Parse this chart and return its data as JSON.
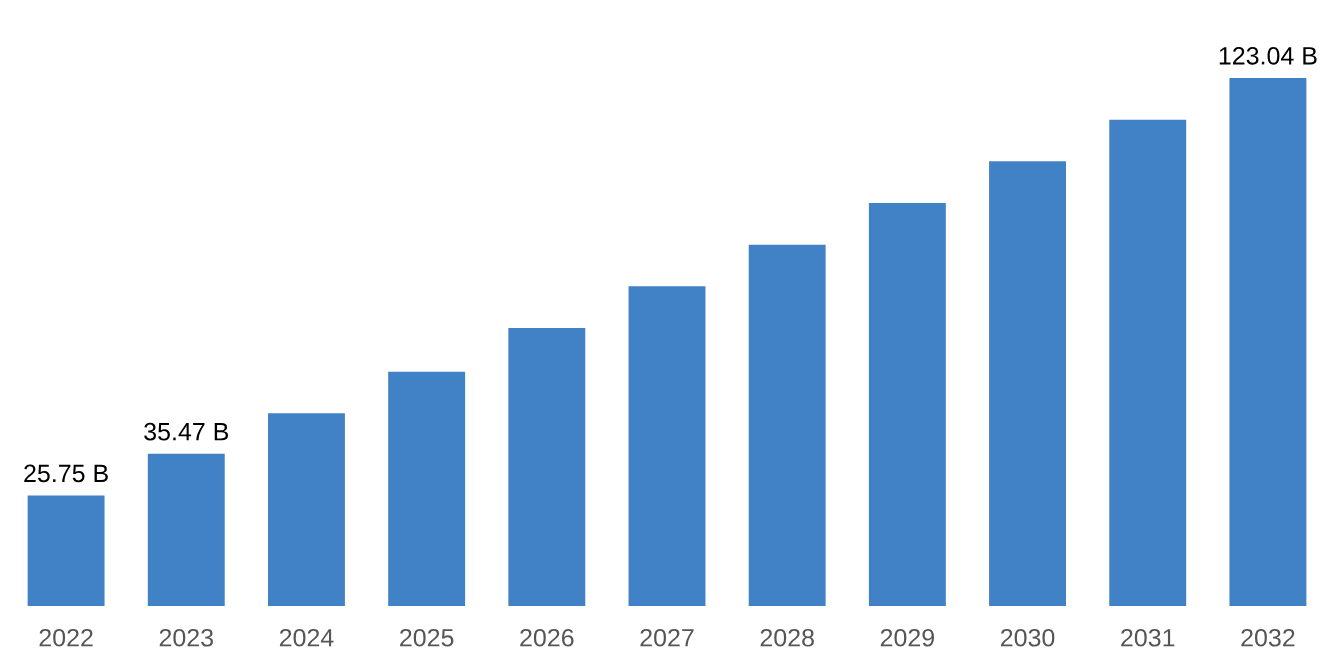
{
  "chart_data": {
    "type": "bar",
    "categories": [
      "2022",
      "2023",
      "2024",
      "2025",
      "2026",
      "2027",
      "2028",
      "2029",
      "2030",
      "2031",
      "2032"
    ],
    "values": [
      25.75,
      35.47,
      44.9,
      54.6,
      64.8,
      74.5,
      84.2,
      93.9,
      103.6,
      113.3,
      123.04
    ],
    "value_labels": [
      "25.75 B",
      "35.47 B",
      null,
      null,
      null,
      null,
      null,
      null,
      null,
      null,
      "123.04 B"
    ],
    "color": "#4181c6",
    "grid": false,
    "legend": false
  }
}
